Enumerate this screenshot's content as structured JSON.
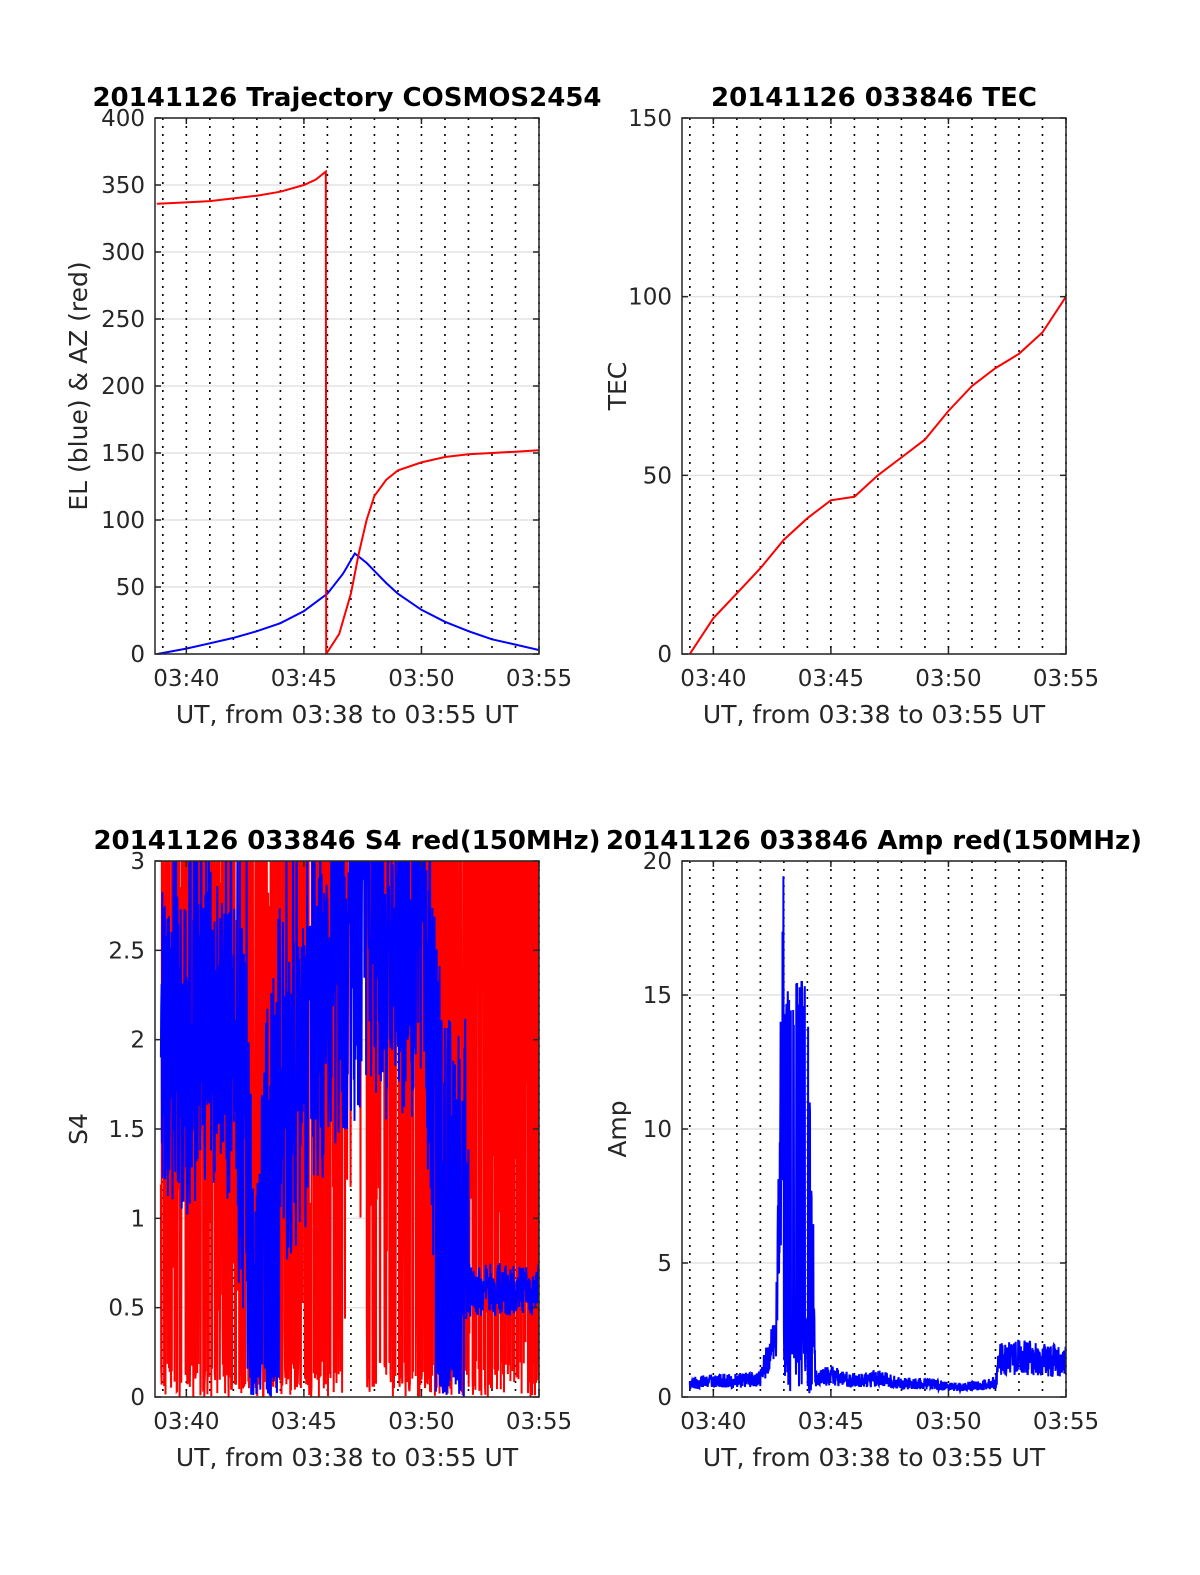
{
  "figure": {
    "background": "#ffffff"
  },
  "colors": {
    "el": "#0000ff",
    "az": "#ff0000",
    "tec": "#ff0000",
    "s4_red": "#ff0000",
    "s4_blue": "#0000ff",
    "amp": "#0000ff"
  },
  "chart_data": [
    {
      "type": "line",
      "title": "20141126 Trajectory COSMOS2454",
      "xlabel": "UT, from 03:38 to 03:55 UT",
      "ylabel": "EL (blue) & AZ (red)",
      "xlim": [
        "03:38:40",
        "03:55:00"
      ],
      "ylim": [
        0,
        400
      ],
      "x_ticks": [
        "03:40",
        "03:45",
        "03:50",
        "03:55"
      ],
      "y_ticks": [
        0,
        50,
        100,
        150,
        200,
        250,
        300,
        350,
        400
      ],
      "grid": "horizontal solid, vertical dotted every minute",
      "series": [
        {
          "name": "EL (blue)",
          "color": "#0000ff",
          "x": [
            "03:38:46",
            "03:40:00",
            "03:41:00",
            "03:42:00",
            "03:43:00",
            "03:44:00",
            "03:45:00",
            "03:46:00",
            "03:46:40",
            "03:47:10",
            "03:47:40",
            "03:48:00",
            "03:48:30",
            "03:49:00",
            "03:50:00",
            "03:51:00",
            "03:52:00",
            "03:53:00",
            "03:54:00",
            "03:55:00"
          ],
          "values": [
            0,
            4,
            8,
            12,
            17,
            23,
            32,
            45,
            60,
            75,
            68,
            62,
            53,
            45,
            33,
            24,
            17,
            11,
            7,
            3
          ]
        },
        {
          "name": "AZ (red)",
          "color": "#ff0000",
          "x": [
            "03:38:46",
            "03:40:00",
            "03:41:00",
            "03:42:00",
            "03:43:00",
            "03:44:00",
            "03:45:00",
            "03:45:30",
            "03:45:56",
            "03:45:57",
            "03:46:30",
            "03:47:00",
            "03:47:20",
            "03:47:40",
            "03:48:00",
            "03:48:30",
            "03:49:00",
            "03:50:00",
            "03:51:00",
            "03:52:00",
            "03:53:00",
            "03:54:00",
            "03:55:00"
          ],
          "values": [
            336,
            337,
            338,
            340,
            342,
            345,
            350,
            354,
            360,
            0,
            15,
            45,
            75,
            100,
            118,
            130,
            137,
            143,
            147,
            149,
            150,
            151,
            152
          ]
        }
      ]
    },
    {
      "type": "line",
      "title": "20141126 033846 TEC",
      "xlabel": "UT, from 03:38 to 03:55 UT",
      "ylabel": "TEC",
      "xlim": [
        "03:38:40",
        "03:55:00"
      ],
      "ylim": [
        0,
        150
      ],
      "x_ticks": [
        "03:40",
        "03:45",
        "03:50",
        "03:55"
      ],
      "y_ticks": [
        0,
        50,
        100,
        150
      ],
      "grid": "horizontal solid, vertical dotted every minute",
      "series": [
        {
          "color": "#ff0000",
          "x": [
            "03:39:00",
            "03:40:00",
            "03:41:00",
            "03:42:00",
            "03:43:00",
            "03:44:00",
            "03:45:00",
            "03:46:00",
            "03:47:00",
            "03:48:00",
            "03:49:00",
            "03:50:00",
            "03:51:00",
            "03:52:00",
            "03:53:00",
            "03:54:00",
            "03:55:00"
          ],
          "values": [
            0,
            10,
            17,
            24,
            32,
            38,
            43,
            44,
            50,
            55,
            60,
            68,
            75,
            80,
            84,
            90,
            100
          ]
        }
      ]
    },
    {
      "type": "line",
      "title": "20141126 033846 S4 red(150MHz)",
      "xlabel": "UT, from 03:38 to 03:55 UT",
      "ylabel": "S4",
      "xlim": [
        "03:38:40",
        "03:55:00"
      ],
      "ylim": [
        0,
        3
      ],
      "x_ticks": [
        "03:40",
        "03:45",
        "03:50",
        "03:55"
      ],
      "y_ticks": [
        "0",
        "0.5",
        "1",
        "1.5",
        "2",
        "2.5",
        "3"
      ],
      "grid": "horizontal solid, vertical dotted every minute",
      "series": [
        {
          "color": "#ff0000",
          "description": "rapidly fluctuating, mostly saturated between 0 and 3"
        },
        {
          "color": "#0000ff",
          "description": "fluctuating 1-3 from 03:39 to 03:52, dropping to 0 near 03:43 and 03:51, then steady about 0.6 from 03:52 to 03:55",
          "x": [
            "03:39:00",
            "03:40:00",
            "03:41:00",
            "03:42:00",
            "03:43:00",
            "03:44:00",
            "03:45:00",
            "03:46:00",
            "03:47:00",
            "03:48:00",
            "03:49:00",
            "03:50:00",
            "03:51:00",
            "03:52:00",
            "03:53:00",
            "03:54:00",
            "03:55:00"
          ],
          "values": [
            2.0,
            1.9,
            2.1,
            1.9,
            0.2,
            1.5,
            1.8,
            2.2,
            2.4,
            2.6,
            2.3,
            2.5,
            0.8,
            0.6,
            0.6,
            0.6,
            0.6
          ]
        }
      ]
    },
    {
      "type": "line",
      "title": "20141126 033846 Amp red(150MHz)",
      "xlabel": "UT, from 03:38 to 03:55 UT",
      "ylabel": "Amp",
      "xlim": [
        "03:38:40",
        "03:55:00"
      ],
      "ylim": [
        0,
        20
      ],
      "x_ticks": [
        "03:40",
        "03:45",
        "03:50",
        "03:55"
      ],
      "y_ticks": [
        0,
        5,
        10,
        15,
        20
      ],
      "grid": "horizontal solid, vertical dotted every minute",
      "series": [
        {
          "color": "#0000ff",
          "description": "noise about 0.5 with a burst up to about 16 between 03:43 and 03:44, rising to about 1.5 after 03:52",
          "x": [
            "03:39:00",
            "03:40:00",
            "03:41:00",
            "03:42:00",
            "03:42:40",
            "03:43:00",
            "03:43:30",
            "03:44:00",
            "03:44:20",
            "03:45:00",
            "03:46:00",
            "03:47:00",
            "03:48:00",
            "03:49:00",
            "03:50:00",
            "03:51:00",
            "03:52:00",
            "03:52:10",
            "03:53:00",
            "03:54:00",
            "03:55:00"
          ],
          "values": [
            0.5,
            0.6,
            0.6,
            0.7,
            2.4,
            15.0,
            15.5,
            16.0,
            0.7,
            0.8,
            0.6,
            0.7,
            0.5,
            0.5,
            0.4,
            0.4,
            0.5,
            1.4,
            1.5,
            1.4,
            1.3
          ]
        }
      ]
    }
  ]
}
